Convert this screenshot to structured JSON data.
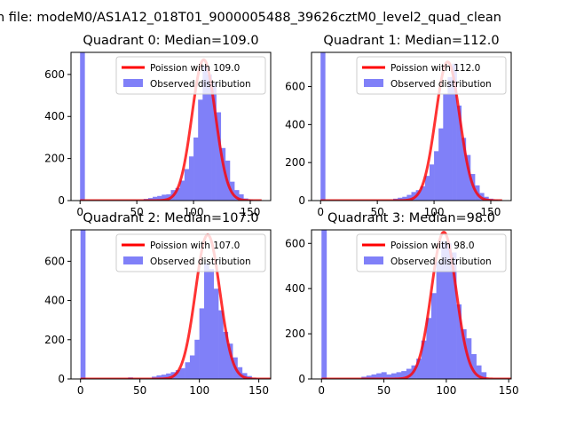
{
  "figure": {
    "suptitle": "n file: modeM0/AS1A12_018T01_9000005488_39626cztM0_level2_quad_clean"
  },
  "colors": {
    "hist": "#8080f8",
    "fit": "#ff0000"
  },
  "chart_data": [
    {
      "type": "bar",
      "title": "Quadrant 0: Median=109.0",
      "median": 109.0,
      "xlim": [
        -8,
        168
      ],
      "ylim": [
        0,
        705
      ],
      "xticks": [
        0,
        50,
        100,
        150
      ],
      "yticks": [
        0,
        200,
        400,
        600
      ],
      "legend": {
        "placement": "upper-right",
        "entries": [
          "Poission with 109.0",
          "Observed distribution"
        ]
      },
      "series": [
        {
          "name": "Observed distribution",
          "type": "histogram",
          "bin_width": 4,
          "bins": [
            [
              0,
              705
            ],
            [
              56,
              8
            ],
            [
              60,
              12
            ],
            [
              64,
              18
            ],
            [
              68,
              22
            ],
            [
              72,
              28
            ],
            [
              76,
              30
            ],
            [
              80,
              50
            ],
            [
              84,
              60
            ],
            [
              88,
              95
            ],
            [
              92,
              150
            ],
            [
              96,
              210
            ],
            [
              100,
              300
            ],
            [
              104,
              480
            ],
            [
              108,
              640
            ],
            [
              112,
              600
            ],
            [
              116,
              560
            ],
            [
              120,
              420
            ],
            [
              124,
              250
            ],
            [
              128,
              190
            ],
            [
              132,
              90
            ],
            [
              136,
              50
            ],
            [
              140,
              30
            ],
            [
              144,
              10
            ],
            [
              148,
              5
            ]
          ]
        },
        {
          "name": "Poission with 109.0",
          "type": "line",
          "peak": 670,
          "sigma": 10.4
        }
      ]
    },
    {
      "type": "bar",
      "title": "Quadrant 1: Median=112.0",
      "median": 112.0,
      "xlim": [
        -8,
        168
      ],
      "ylim": [
        0,
        780
      ],
      "xticks": [
        0,
        50,
        100,
        150
      ],
      "yticks": [
        0,
        200,
        400,
        600
      ],
      "legend": {
        "placement": "upper-right",
        "entries": [
          "Poission with 112.0",
          "Observed distribution"
        ]
      },
      "series": [
        {
          "name": "Observed distribution",
          "type": "histogram",
          "bin_width": 4,
          "bins": [
            [
              0,
              780
            ],
            [
              64,
              10
            ],
            [
              68,
              15
            ],
            [
              72,
              20
            ],
            [
              76,
              30
            ],
            [
              80,
              45
            ],
            [
              84,
              55
            ],
            [
              88,
              75
            ],
            [
              92,
              130
            ],
            [
              96,
              190
            ],
            [
              100,
              260
            ],
            [
              104,
              380
            ],
            [
              108,
              560
            ],
            [
              112,
              650
            ],
            [
              116,
              720
            ],
            [
              120,
              500
            ],
            [
              124,
              330
            ],
            [
              128,
              240
            ],
            [
              132,
              140
            ],
            [
              136,
              80
            ],
            [
              140,
              40
            ],
            [
              144,
              20
            ],
            [
              148,
              10
            ],
            [
              152,
              5
            ]
          ]
        },
        {
          "name": "Poission with 112.0",
          "type": "line",
          "peak": 730,
          "sigma": 10.6
        }
      ]
    },
    {
      "type": "bar",
      "title": "Quadrant 2: Median=107.0",
      "median": 107.0,
      "xlim": [
        -8,
        160
      ],
      "ylim": [
        0,
        760
      ],
      "xticks": [
        0,
        50,
        100,
        150
      ],
      "yticks": [
        0,
        200,
        400,
        600
      ],
      "legend": {
        "placement": "upper-right",
        "entries": [
          "Poission with 107.0",
          "Observed distribution"
        ]
      },
      "series": [
        {
          "name": "Observed distribution",
          "type": "histogram",
          "bin_width": 4,
          "bins": [
            [
              0,
              760
            ],
            [
              40,
              8
            ],
            [
              60,
              12
            ],
            [
              64,
              18
            ],
            [
              68,
              22
            ],
            [
              72,
              28
            ],
            [
              76,
              35
            ],
            [
              80,
              45
            ],
            [
              84,
              55
            ],
            [
              88,
              85
            ],
            [
              92,
              120
            ],
            [
              96,
              200
            ],
            [
              100,
              360
            ],
            [
              104,
              590
            ],
            [
              108,
              560
            ],
            [
              112,
              460
            ],
            [
              116,
              350
            ],
            [
              120,
              240
            ],
            [
              124,
              180
            ],
            [
              128,
              110
            ],
            [
              132,
              60
            ],
            [
              136,
              30
            ],
            [
              140,
              15
            ],
            [
              144,
              5
            ]
          ]
        },
        {
          "name": "Poission with 107.0",
          "type": "line",
          "peak": 735,
          "sigma": 10.3
        }
      ]
    },
    {
      "type": "bar",
      "title": "Quadrant 3: Median=98.0",
      "median": 98.0,
      "xlim": [
        -8,
        152
      ],
      "ylim": [
        0,
        660
      ],
      "xticks": [
        0,
        50,
        100,
        150
      ],
      "yticks": [
        0,
        200,
        400,
        600
      ],
      "legend": {
        "placement": "upper-right",
        "entries": [
          "Poission with 98.0",
          "Observed distribution"
        ]
      },
      "series": [
        {
          "name": "Observed distribution",
          "type": "histogram",
          "bin_width": 4,
          "bins": [
            [
              0,
              660
            ],
            [
              32,
              10
            ],
            [
              36,
              15
            ],
            [
              40,
              20
            ],
            [
              44,
              25
            ],
            [
              48,
              30
            ],
            [
              52,
              20
            ],
            [
              56,
              25
            ],
            [
              60,
              30
            ],
            [
              64,
              35
            ],
            [
              68,
              45
            ],
            [
              72,
              60
            ],
            [
              76,
              90
            ],
            [
              80,
              170
            ],
            [
              84,
              270
            ],
            [
              88,
              380
            ],
            [
              92,
              520
            ],
            [
              96,
              610
            ],
            [
              100,
              600
            ],
            [
              104,
              560
            ],
            [
              108,
              330
            ],
            [
              112,
              220
            ],
            [
              116,
              180
            ],
            [
              120,
              110
            ],
            [
              124,
              60
            ],
            [
              128,
              30
            ]
          ]
        },
        {
          "name": "Poission with 98.0",
          "type": "line",
          "peak": 650,
          "sigma": 9.9
        }
      ]
    }
  ]
}
